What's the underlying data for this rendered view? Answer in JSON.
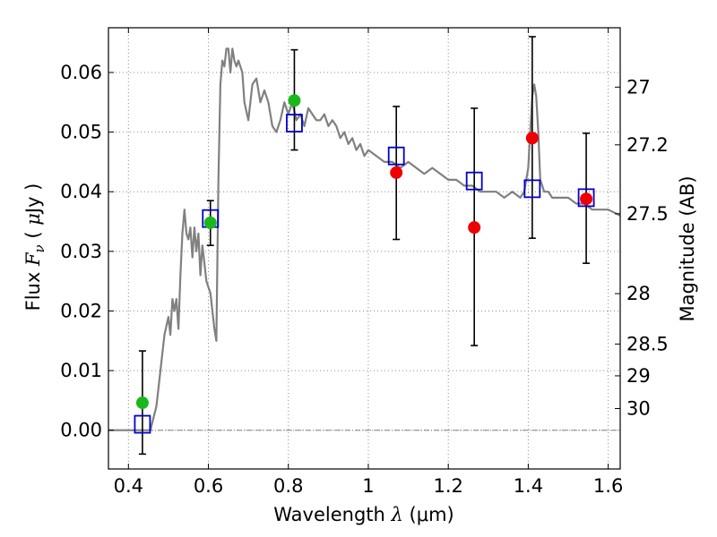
{
  "chart_data": {
    "type": "scatter",
    "xlabel": {
      "prefix": "Wavelength",
      "symbol": "λ",
      "unit": "(μm)"
    },
    "ylabel": {
      "prefix": "Flux",
      "symbol": "F",
      "subscript": "ν",
      "unit_open": "(",
      "unit_mu": "μ",
      "unit_rest": "Jy )"
    },
    "y2label": "Magnitude (AB)",
    "xlim": [
      0.35,
      1.63
    ],
    "ylim": [
      -0.0065,
      0.0675
    ],
    "grid": true,
    "x_ticks": [
      {
        "value": 0.4,
        "label": "0.4"
      },
      {
        "value": 0.6,
        "label": "0.6"
      },
      {
        "value": 0.8,
        "label": "0.8"
      },
      {
        "value": 1.0,
        "label": "1"
      },
      {
        "value": 1.2,
        "label": "1.2"
      },
      {
        "value": 1.4,
        "label": "1.4"
      },
      {
        "value": 1.6,
        "label": "1.6"
      }
    ],
    "y_ticks": [
      {
        "value": 0.0,
        "label": "0.00"
      },
      {
        "value": 0.01,
        "label": "0.01"
      },
      {
        "value": 0.02,
        "label": "0.02"
      },
      {
        "value": 0.03,
        "label": "0.03"
      },
      {
        "value": 0.04,
        "label": "0.04"
      },
      {
        "value": 0.05,
        "label": "0.05"
      },
      {
        "value": 0.06,
        "label": "0.06"
      }
    ],
    "y2_ticks": [
      {
        "value": 27.0,
        "label": "27"
      },
      {
        "value": 27.2,
        "label": "27.2"
      },
      {
        "value": 27.5,
        "label": "27.5"
      },
      {
        "value": 28.0,
        "label": "28"
      },
      {
        "value": 28.5,
        "label": "28.5"
      },
      {
        "value": 29.0,
        "label": "29"
      },
      {
        "value": 30.0,
        "label": "30"
      }
    ],
    "colors": {
      "model": "#808080",
      "green": "#1bb81b",
      "red": "#ee0000",
      "square": "#0000cc",
      "errorbar": "#000000",
      "grid": "#8c8c8c",
      "zero_line": "#808080"
    },
    "series": [
      {
        "style": "model-line",
        "x": [
          0.35,
          0.44,
          0.455,
          0.47,
          0.48,
          0.49,
          0.5,
          0.505,
          0.51,
          0.515,
          0.52,
          0.525,
          0.53,
          0.535,
          0.54,
          0.545,
          0.55,
          0.555,
          0.56,
          0.565,
          0.57,
          0.575,
          0.58,
          0.585,
          0.59,
          0.595,
          0.6,
          0.605,
          0.61,
          0.615,
          0.62,
          0.625,
          0.63,
          0.635,
          0.64,
          0.645,
          0.65,
          0.655,
          0.66,
          0.665,
          0.67,
          0.675,
          0.68,
          0.685,
          0.69,
          0.7,
          0.71,
          0.72,
          0.73,
          0.74,
          0.75,
          0.76,
          0.77,
          0.78,
          0.79,
          0.8,
          0.81,
          0.82,
          0.83,
          0.84,
          0.85,
          0.86,
          0.87,
          0.88,
          0.89,
          0.9,
          0.91,
          0.92,
          0.93,
          0.94,
          0.95,
          0.96,
          0.97,
          0.98,
          0.99,
          1.0,
          1.02,
          1.04,
          1.06,
          1.08,
          1.1,
          1.12,
          1.14,
          1.16,
          1.18,
          1.2,
          1.22,
          1.24,
          1.26,
          1.28,
          1.3,
          1.32,
          1.34,
          1.36,
          1.38,
          1.39,
          1.4,
          1.405,
          1.41,
          1.415,
          1.42,
          1.425,
          1.43,
          1.44,
          1.45,
          1.46,
          1.48,
          1.5,
          1.52,
          1.54,
          1.56,
          1.58,
          1.6,
          1.63
        ],
        "values": [
          0.0,
          0.0,
          0.0,
          0.004,
          0.01,
          0.016,
          0.019,
          0.016,
          0.022,
          0.02,
          0.022,
          0.017,
          0.026,
          0.033,
          0.037,
          0.033,
          0.032,
          0.034,
          0.029,
          0.034,
          0.03,
          0.033,
          0.026,
          0.031,
          0.028,
          0.025,
          0.024,
          0.023,
          0.02,
          0.017,
          0.015,
          0.042,
          0.058,
          0.062,
          0.061,
          0.064,
          0.064,
          0.06,
          0.064,
          0.062,
          0.061,
          0.062,
          0.061,
          0.06,
          0.055,
          0.052,
          0.058,
          0.059,
          0.055,
          0.057,
          0.055,
          0.051,
          0.05,
          0.052,
          0.055,
          0.053,
          0.055,
          0.052,
          0.053,
          0.051,
          0.054,
          0.053,
          0.052,
          0.052,
          0.053,
          0.051,
          0.052,
          0.051,
          0.049,
          0.05,
          0.048,
          0.049,
          0.047,
          0.048,
          0.046,
          0.047,
          0.046,
          0.045,
          0.045,
          0.044,
          0.045,
          0.044,
          0.043,
          0.044,
          0.043,
          0.042,
          0.042,
          0.041,
          0.041,
          0.04,
          0.04,
          0.04,
          0.039,
          0.04,
          0.039,
          0.04,
          0.044,
          0.05,
          0.056,
          0.058,
          0.056,
          0.05,
          0.042,
          0.04,
          0.04,
          0.039,
          0.039,
          0.039,
          0.038,
          0.038,
          0.037,
          0.037,
          0.037,
          0.036
        ]
      },
      {
        "style": "squares",
        "x": [
          0.435,
          0.605,
          0.815,
          1.07,
          1.265,
          1.41,
          1.545
        ],
        "values": [
          0.001,
          0.0355,
          0.0515,
          0.046,
          0.0418,
          0.0405,
          0.039
        ]
      },
      {
        "style": "green-dots",
        "x": [
          0.435,
          0.605,
          0.815
        ],
        "values": [
          0.0046,
          0.0348,
          0.0553
        ]
      },
      {
        "style": "red-dots",
        "x": [
          1.07,
          1.265,
          1.41,
          1.545
        ],
        "values": [
          0.0432,
          0.034,
          0.049,
          0.0388
        ]
      }
    ],
    "errorbars": [
      {
        "x": 0.435,
        "low": -0.004,
        "high": 0.0133
      },
      {
        "x": 0.605,
        "low": 0.031,
        "high": 0.0385
      },
      {
        "x": 0.815,
        "low": 0.047,
        "high": 0.0638
      },
      {
        "x": 1.07,
        "low": 0.032,
        "high": 0.0543
      },
      {
        "x": 1.265,
        "low": 0.0142,
        "high": 0.054
      },
      {
        "x": 1.41,
        "low": 0.0322,
        "high": 0.066
      },
      {
        "x": 1.545,
        "low": 0.028,
        "high": 0.0498
      }
    ]
  }
}
